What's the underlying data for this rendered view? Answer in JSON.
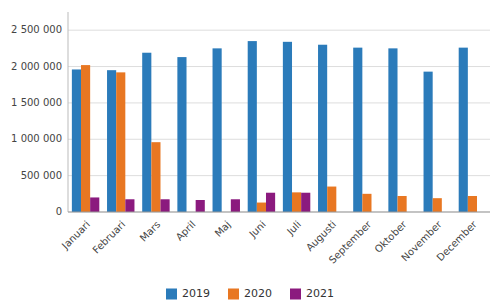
{
  "chart_data": {
    "type": "bar",
    "categories": [
      "Januari",
      "Februari",
      "Mars",
      "April",
      "Maj",
      "Juni",
      "Juli",
      "Augusti",
      "September",
      "Oktober",
      "November",
      "December"
    ],
    "series": [
      {
        "name": "2019",
        "color": "#2b7bba",
        "values": [
          1960000,
          1950000,
          2190000,
          2130000,
          2250000,
          2350000,
          2340000,
          2300000,
          2260000,
          2250000,
          1930000,
          2260000
        ]
      },
      {
        "name": "2020",
        "color": "#e87722",
        "values": [
          2020000,
          1920000,
          960000,
          0,
          0,
          130000,
          270000,
          350000,
          250000,
          220000,
          190000,
          220000
        ]
      },
      {
        "name": "2021",
        "color": "#8b1a7e",
        "values": [
          200000,
          175000,
          175000,
          165000,
          175000,
          265000,
          265000,
          0,
          0,
          0,
          0,
          0
        ]
      }
    ],
    "ylim": [
      0,
      2750000
    ],
    "yticks": [
      0,
      {
        "value": 500000,
        "label": "500 000"
      },
      {
        "value": 1000000,
        "label": "1 000 000"
      },
      {
        "value": 1500000,
        "label": "1 500 000"
      },
      {
        "value": 2000000,
        "label": "2 000 000"
      },
      {
        "value": 2500000,
        "label": "2 500 000"
      }
    ],
    "grid": true,
    "legend": "bottom"
  }
}
